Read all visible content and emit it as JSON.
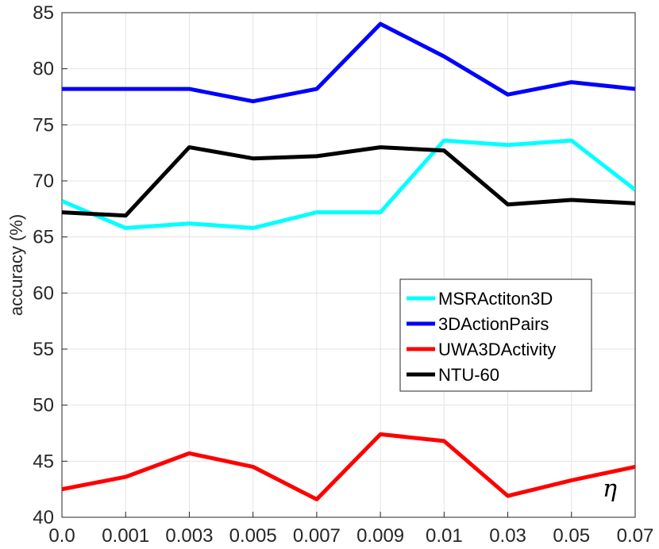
{
  "chart_data": {
    "type": "line",
    "title": "",
    "xlabel": "η",
    "ylabel": "accuracy (%)",
    "categories": [
      "0.0",
      "0.001",
      "0.003",
      "0.005",
      "0.007",
      "0.009",
      "0.01",
      "0.03",
      "0.05",
      "0.07"
    ],
    "ylim": [
      40,
      85
    ],
    "yticks": [
      40,
      45,
      50,
      55,
      60,
      65,
      70,
      75,
      80,
      85
    ],
    "grid": true,
    "legend_position": "center-right",
    "series": [
      {
        "name": "MSRActiton3D",
        "color": "#00ffff",
        "values": [
          68.2,
          65.8,
          66.2,
          65.8,
          67.2,
          67.2,
          73.6,
          73.2,
          73.6,
          69.2
        ]
      },
      {
        "name": "3DActionPairs",
        "color": "#0000ff",
        "values": [
          78.2,
          78.2,
          78.2,
          77.1,
          78.2,
          84.0,
          81.1,
          77.7,
          78.8,
          78.2
        ]
      },
      {
        "name": "UWA3DActivity",
        "color": "#ff0000",
        "values": [
          42.5,
          43.6,
          45.7,
          44.5,
          41.6,
          47.4,
          46.8,
          41.9,
          43.3,
          44.5
        ]
      },
      {
        "name": "NTU-60",
        "color": "#000000",
        "values": [
          67.2,
          66.9,
          73.0,
          72.0,
          72.2,
          73.0,
          72.7,
          67.9,
          68.3,
          68.0
        ]
      }
    ]
  }
}
